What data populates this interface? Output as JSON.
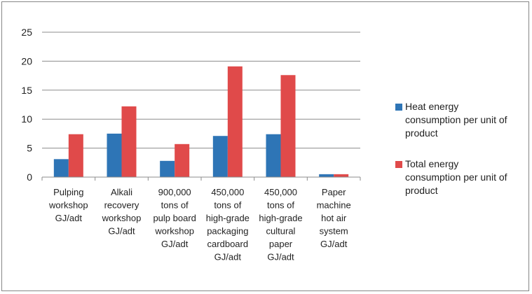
{
  "chart_data": {
    "type": "bar",
    "title": "",
    "xlabel": "",
    "ylabel": "",
    "ylim": [
      0,
      25
    ],
    "yticks": [
      "0",
      "5",
      "10",
      "15",
      "20",
      "25"
    ],
    "grid": true,
    "legend_position": "right",
    "categories": [
      [
        "Pulping",
        "workshop",
        "GJ/adt"
      ],
      [
        "Alkali",
        "recovery",
        "workshop",
        "GJ/adt"
      ],
      [
        "900,000",
        "tons of",
        "pulp board",
        "workshop",
        "GJ/adt"
      ],
      [
        "450,000",
        "tons of",
        "high-grade",
        "packaging",
        "cardboard",
        "GJ/adt"
      ],
      [
        "450,000",
        "tons of",
        "high-grade",
        "cultural",
        "paper",
        "GJ/adt"
      ],
      [
        "Paper",
        "machine",
        "hot air",
        "system",
        "GJ/adt"
      ]
    ],
    "series": [
      {
        "name": "Heat energy consumption per unit of product",
        "legend_lines": [
          "Heat energy",
          "consumption per unit of",
          "product"
        ],
        "color": "#2E75B6",
        "values": [
          3.1,
          7.5,
          2.8,
          7.1,
          7.4,
          0.5
        ]
      },
      {
        "name": "Total energy consumption per unit of product",
        "legend_lines": [
          "Total energy",
          "consumption per unit of",
          "product"
        ],
        "color": "#E04A4A",
        "values": [
          7.4,
          12.2,
          5.7,
          19.1,
          17.6,
          0.5
        ]
      }
    ]
  }
}
